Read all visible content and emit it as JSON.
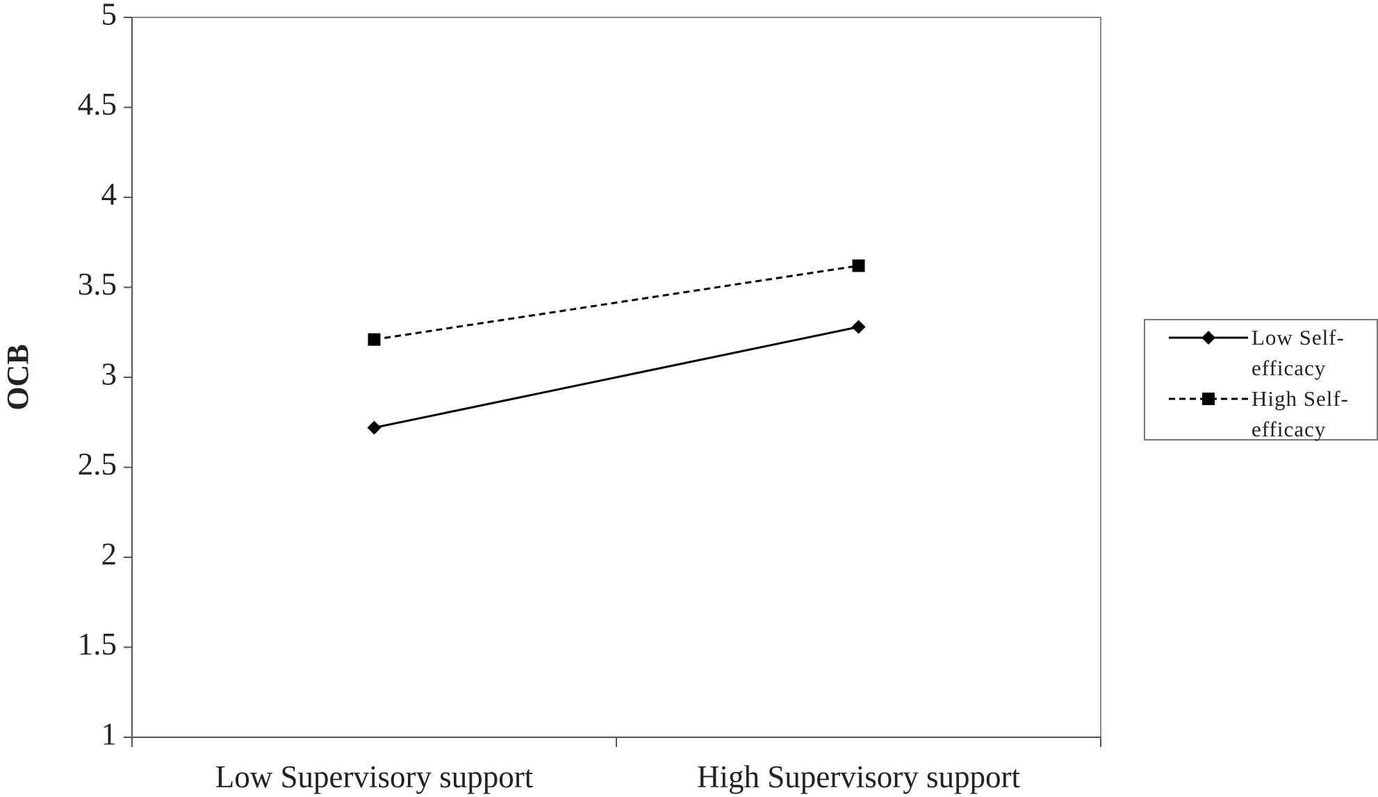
{
  "chart_data": {
    "type": "line",
    "y_label": "OCB",
    "categories": [
      "Low Supervisory support",
      "High Supervisory support"
    ],
    "series": [
      {
        "name": "Low Self-efficacy",
        "color": "#000000",
        "marker": "diamond",
        "dashed": false,
        "values": [
          2.72,
          3.28
        ]
      },
      {
        "name": "High Self-efficacy",
        "color": "#000000",
        "marker": "square",
        "dashed": true,
        "values": [
          3.21,
          3.62
        ]
      }
    ],
    "ylim": [
      1,
      5
    ],
    "yticks": [
      1,
      1.5,
      2,
      2.5,
      3,
      3.5,
      4,
      4.5,
      5
    ],
    "grid": false,
    "legend": "right"
  }
}
